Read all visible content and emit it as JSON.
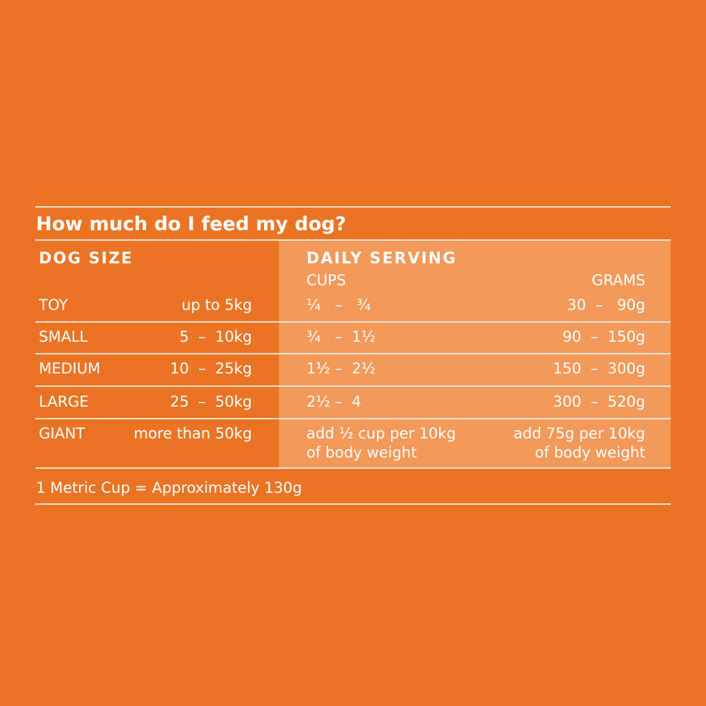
{
  "title": "How much do I feed my dog?",
  "table": {
    "headers": {
      "size": "DOG SIZE",
      "serving": "DAILY SERVING",
      "cups": "CUPS",
      "grams": "GRAMS"
    },
    "rows": [
      [
        "TOY",
        "up to 5kg",
        "¼   –   ¾",
        "30  –   90g"
      ],
      [
        "SMALL",
        "5  –  10kg",
        "¾   –  1½",
        "90  –  150g"
      ],
      [
        "MEDIUM",
        "10  –  25kg",
        "1½ –  2½",
        "150  –  300g"
      ],
      [
        "LARGE",
        "25  –  50kg",
        "2½ –  4",
        "300  –  520g"
      ],
      [
        "GIANT",
        "more than 50kg",
        "add ½ cup per 10kg\nof body weight",
        "add 75g per 10kg\nof body weight"
      ]
    ]
  },
  "footnote": "1 Metric Cup = Approximately 130g"
}
